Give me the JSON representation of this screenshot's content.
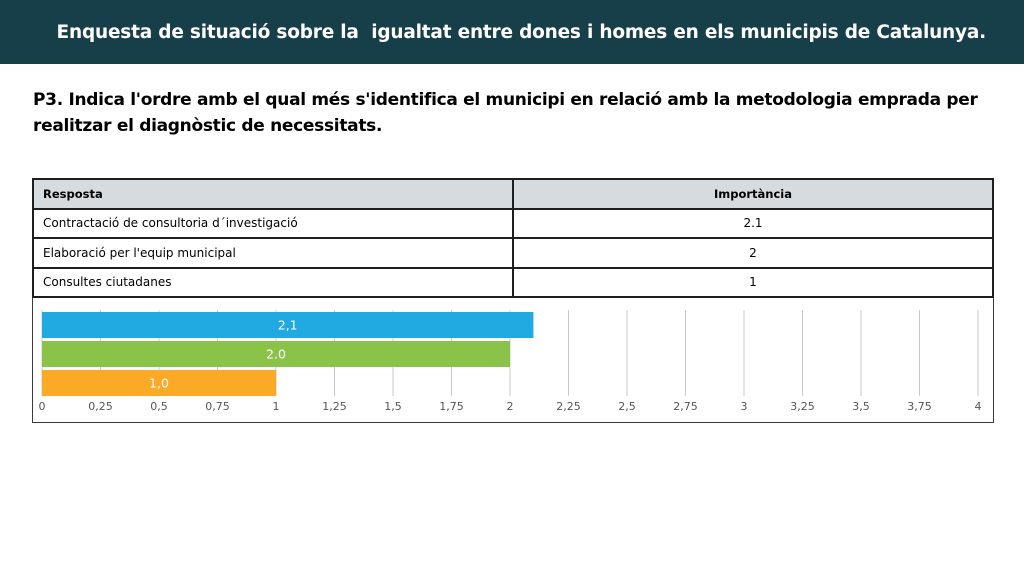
{
  "header": {
    "title": "Enquesta de situació sobre la  igualtat entre dones i homes en els municipis de Catalunya."
  },
  "question": {
    "line1": "P3. Indica l'ordre amb el qual més s'identifica el municipi en relació amb la metodologia emprada per",
    "line2": "realitzar el diagnòstic de necessitats."
  },
  "table": {
    "headers": {
      "response": "Resposta",
      "importance": "Importància"
    },
    "rows": [
      {
        "response": "Contractació de consultoria d´investigació",
        "importance": "2.1"
      },
      {
        "response": "Elaboració per l'equip municipal",
        "importance": "2"
      },
      {
        "response": "Consultes ciutadanes",
        "importance": "1"
      }
    ]
  },
  "chart_data": {
    "type": "bar",
    "orientation": "horizontal",
    "values": [
      2.1,
      2.0,
      1.0
    ],
    "data_labels": [
      "2,1",
      "2.0",
      "1,0"
    ],
    "colors": [
      "#21a9e1",
      "#8bc34a",
      "#fbaa27"
    ],
    "xlim": [
      0,
      4
    ],
    "ticks": [
      0,
      0.25,
      0.5,
      0.75,
      1,
      1.25,
      1.5,
      1.75,
      2,
      2.25,
      2.5,
      2.75,
      3,
      3.25,
      3.5,
      3.75,
      4
    ],
    "tick_labels": [
      "0",
      "0,25",
      "0,5",
      "0,75",
      "1",
      "1,25",
      "1,5",
      "1,75",
      "2",
      "2,25",
      "2,5",
      "2,75",
      "3",
      "3,25",
      "3,5",
      "3,75",
      "4"
    ],
    "grid": true
  }
}
